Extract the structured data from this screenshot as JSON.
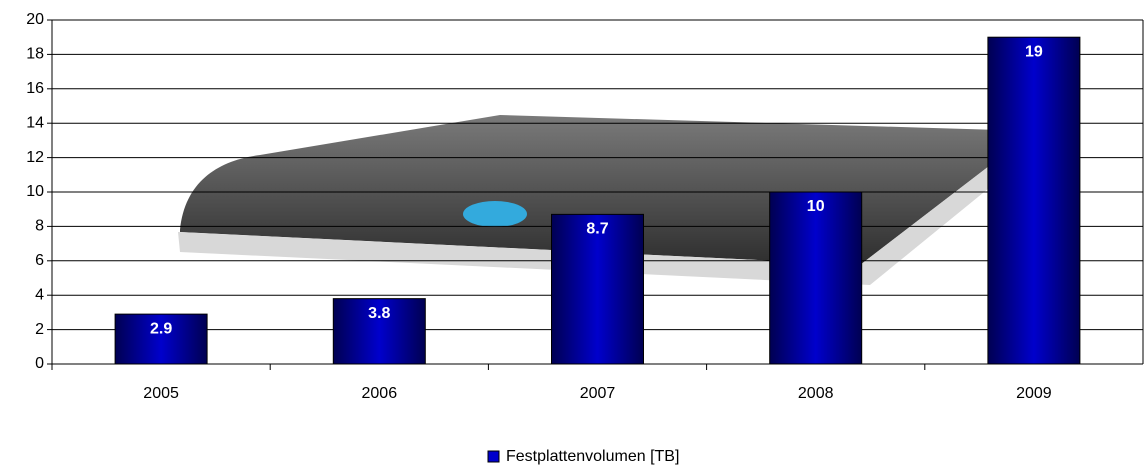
{
  "chart_data": {
    "type": "bar",
    "categories": [
      "2005",
      "2006",
      "2007",
      "2008",
      "2009"
    ],
    "series": [
      {
        "name": "Festplattenvolumen [TB]",
        "color": "#0000cc",
        "values": [
          2.9,
          3.8,
          8.7,
          10,
          19
        ]
      }
    ],
    "ylim": [
      0,
      20
    ],
    "yticks": [
      0,
      2,
      4,
      6,
      8,
      10,
      12,
      14,
      16,
      18,
      20
    ],
    "grid": true,
    "legend": "bottom"
  }
}
